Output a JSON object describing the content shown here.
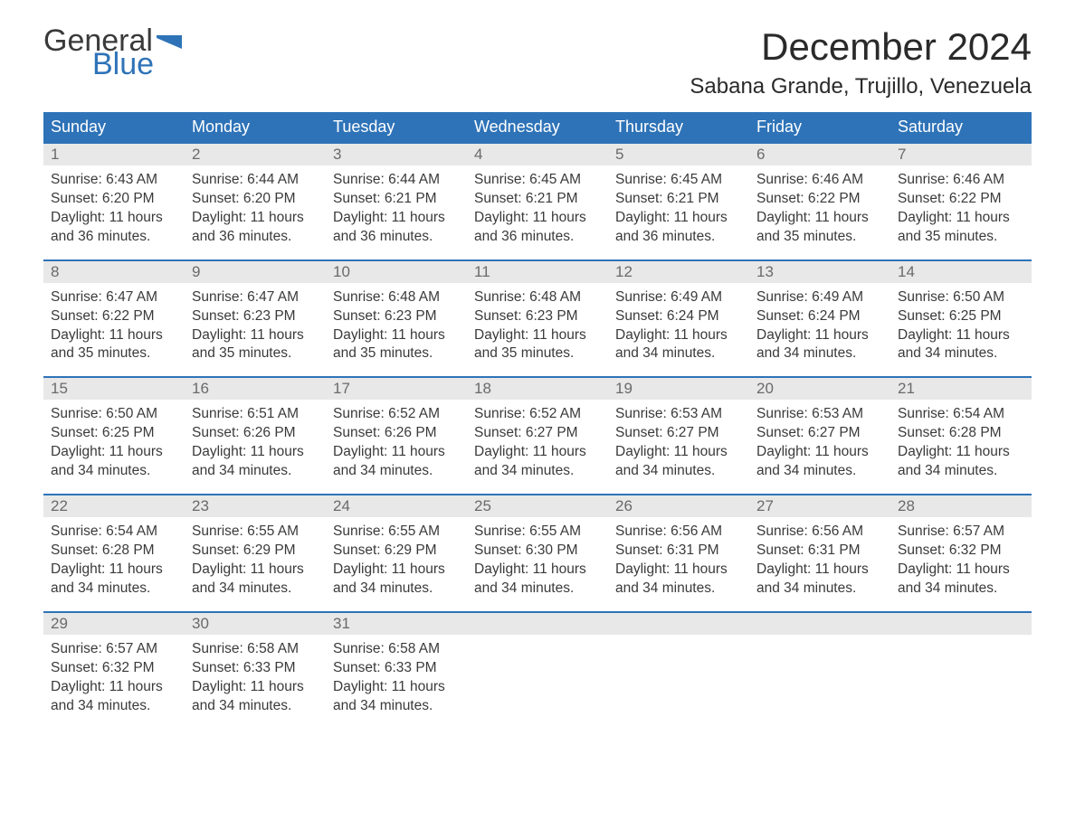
{
  "brand": {
    "general": "General",
    "blue": "Blue"
  },
  "title": "December 2024",
  "location": "Sabana Grande, Trujillo, Venezuela",
  "colors": {
    "accent": "#2e73b8",
    "header_text": "#ffffff",
    "daynum_bg": "#e8e8e8",
    "body_text": "#3a3a3a",
    "daynum_text": "#6a6a6a",
    "page_bg": "#ffffff"
  },
  "weekdays": [
    "Sunday",
    "Monday",
    "Tuesday",
    "Wednesday",
    "Thursday",
    "Friday",
    "Saturday"
  ],
  "weeks": [
    [
      {
        "day": "1",
        "sunrise": "Sunrise: 6:43 AM",
        "sunset": "Sunset: 6:20 PM",
        "daylight1": "Daylight: 11 hours",
        "daylight2": "and 36 minutes."
      },
      {
        "day": "2",
        "sunrise": "Sunrise: 6:44 AM",
        "sunset": "Sunset: 6:20 PM",
        "daylight1": "Daylight: 11 hours",
        "daylight2": "and 36 minutes."
      },
      {
        "day": "3",
        "sunrise": "Sunrise: 6:44 AM",
        "sunset": "Sunset: 6:21 PM",
        "daylight1": "Daylight: 11 hours",
        "daylight2": "and 36 minutes."
      },
      {
        "day": "4",
        "sunrise": "Sunrise: 6:45 AM",
        "sunset": "Sunset: 6:21 PM",
        "daylight1": "Daylight: 11 hours",
        "daylight2": "and 36 minutes."
      },
      {
        "day": "5",
        "sunrise": "Sunrise: 6:45 AM",
        "sunset": "Sunset: 6:21 PM",
        "daylight1": "Daylight: 11 hours",
        "daylight2": "and 36 minutes."
      },
      {
        "day": "6",
        "sunrise": "Sunrise: 6:46 AM",
        "sunset": "Sunset: 6:22 PM",
        "daylight1": "Daylight: 11 hours",
        "daylight2": "and 35 minutes."
      },
      {
        "day": "7",
        "sunrise": "Sunrise: 6:46 AM",
        "sunset": "Sunset: 6:22 PM",
        "daylight1": "Daylight: 11 hours",
        "daylight2": "and 35 minutes."
      }
    ],
    [
      {
        "day": "8",
        "sunrise": "Sunrise: 6:47 AM",
        "sunset": "Sunset: 6:22 PM",
        "daylight1": "Daylight: 11 hours",
        "daylight2": "and 35 minutes."
      },
      {
        "day": "9",
        "sunrise": "Sunrise: 6:47 AM",
        "sunset": "Sunset: 6:23 PM",
        "daylight1": "Daylight: 11 hours",
        "daylight2": "and 35 minutes."
      },
      {
        "day": "10",
        "sunrise": "Sunrise: 6:48 AM",
        "sunset": "Sunset: 6:23 PM",
        "daylight1": "Daylight: 11 hours",
        "daylight2": "and 35 minutes."
      },
      {
        "day": "11",
        "sunrise": "Sunrise: 6:48 AM",
        "sunset": "Sunset: 6:23 PM",
        "daylight1": "Daylight: 11 hours",
        "daylight2": "and 35 minutes."
      },
      {
        "day": "12",
        "sunrise": "Sunrise: 6:49 AM",
        "sunset": "Sunset: 6:24 PM",
        "daylight1": "Daylight: 11 hours",
        "daylight2": "and 34 minutes."
      },
      {
        "day": "13",
        "sunrise": "Sunrise: 6:49 AM",
        "sunset": "Sunset: 6:24 PM",
        "daylight1": "Daylight: 11 hours",
        "daylight2": "and 34 minutes."
      },
      {
        "day": "14",
        "sunrise": "Sunrise: 6:50 AM",
        "sunset": "Sunset: 6:25 PM",
        "daylight1": "Daylight: 11 hours",
        "daylight2": "and 34 minutes."
      }
    ],
    [
      {
        "day": "15",
        "sunrise": "Sunrise: 6:50 AM",
        "sunset": "Sunset: 6:25 PM",
        "daylight1": "Daylight: 11 hours",
        "daylight2": "and 34 minutes."
      },
      {
        "day": "16",
        "sunrise": "Sunrise: 6:51 AM",
        "sunset": "Sunset: 6:26 PM",
        "daylight1": "Daylight: 11 hours",
        "daylight2": "and 34 minutes."
      },
      {
        "day": "17",
        "sunrise": "Sunrise: 6:52 AM",
        "sunset": "Sunset: 6:26 PM",
        "daylight1": "Daylight: 11 hours",
        "daylight2": "and 34 minutes."
      },
      {
        "day": "18",
        "sunrise": "Sunrise: 6:52 AM",
        "sunset": "Sunset: 6:27 PM",
        "daylight1": "Daylight: 11 hours",
        "daylight2": "and 34 minutes."
      },
      {
        "day": "19",
        "sunrise": "Sunrise: 6:53 AM",
        "sunset": "Sunset: 6:27 PM",
        "daylight1": "Daylight: 11 hours",
        "daylight2": "and 34 minutes."
      },
      {
        "day": "20",
        "sunrise": "Sunrise: 6:53 AM",
        "sunset": "Sunset: 6:27 PM",
        "daylight1": "Daylight: 11 hours",
        "daylight2": "and 34 minutes."
      },
      {
        "day": "21",
        "sunrise": "Sunrise: 6:54 AM",
        "sunset": "Sunset: 6:28 PM",
        "daylight1": "Daylight: 11 hours",
        "daylight2": "and 34 minutes."
      }
    ],
    [
      {
        "day": "22",
        "sunrise": "Sunrise: 6:54 AM",
        "sunset": "Sunset: 6:28 PM",
        "daylight1": "Daylight: 11 hours",
        "daylight2": "and 34 minutes."
      },
      {
        "day": "23",
        "sunrise": "Sunrise: 6:55 AM",
        "sunset": "Sunset: 6:29 PM",
        "daylight1": "Daylight: 11 hours",
        "daylight2": "and 34 minutes."
      },
      {
        "day": "24",
        "sunrise": "Sunrise: 6:55 AM",
        "sunset": "Sunset: 6:29 PM",
        "daylight1": "Daylight: 11 hours",
        "daylight2": "and 34 minutes."
      },
      {
        "day": "25",
        "sunrise": "Sunrise: 6:55 AM",
        "sunset": "Sunset: 6:30 PM",
        "daylight1": "Daylight: 11 hours",
        "daylight2": "and 34 minutes."
      },
      {
        "day": "26",
        "sunrise": "Sunrise: 6:56 AM",
        "sunset": "Sunset: 6:31 PM",
        "daylight1": "Daylight: 11 hours",
        "daylight2": "and 34 minutes."
      },
      {
        "day": "27",
        "sunrise": "Sunrise: 6:56 AM",
        "sunset": "Sunset: 6:31 PM",
        "daylight1": "Daylight: 11 hours",
        "daylight2": "and 34 minutes."
      },
      {
        "day": "28",
        "sunrise": "Sunrise: 6:57 AM",
        "sunset": "Sunset: 6:32 PM",
        "daylight1": "Daylight: 11 hours",
        "daylight2": "and 34 minutes."
      }
    ],
    [
      {
        "day": "29",
        "sunrise": "Sunrise: 6:57 AM",
        "sunset": "Sunset: 6:32 PM",
        "daylight1": "Daylight: 11 hours",
        "daylight2": "and 34 minutes."
      },
      {
        "day": "30",
        "sunrise": "Sunrise: 6:58 AM",
        "sunset": "Sunset: 6:33 PM",
        "daylight1": "Daylight: 11 hours",
        "daylight2": "and 34 minutes."
      },
      {
        "day": "31",
        "sunrise": "Sunrise: 6:58 AM",
        "sunset": "Sunset: 6:33 PM",
        "daylight1": "Daylight: 11 hours",
        "daylight2": "and 34 minutes."
      },
      null,
      null,
      null,
      null
    ]
  ]
}
